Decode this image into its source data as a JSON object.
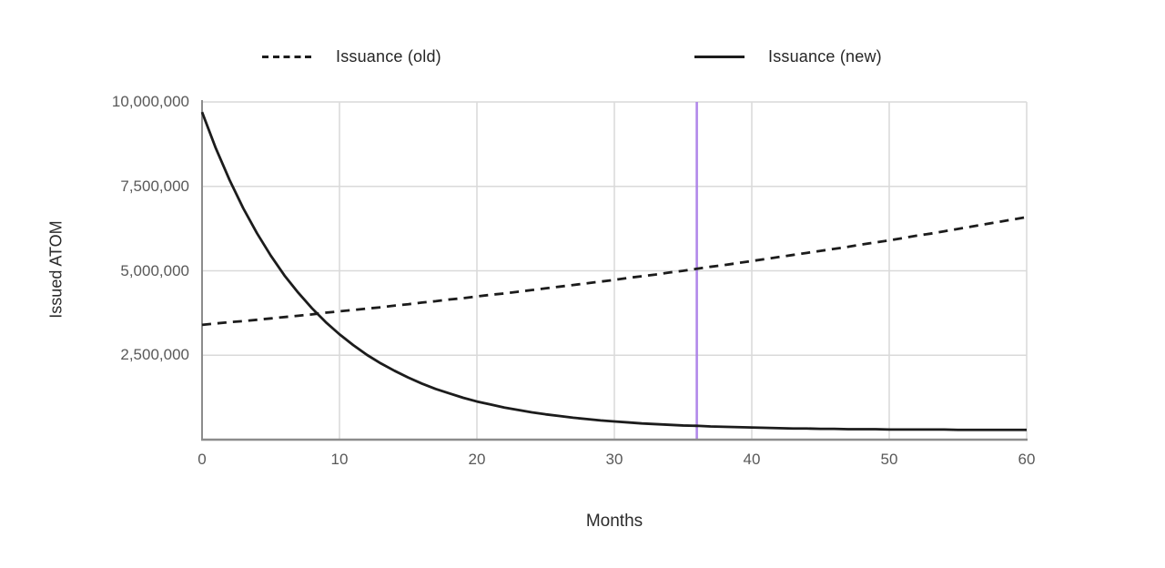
{
  "chart_data": {
    "type": "line",
    "title": "",
    "xlabel": "Months",
    "ylabel": "Issued ATOM",
    "xlim": [
      0,
      60
    ],
    "ylim": [
      0,
      10000000
    ],
    "grid": true,
    "legend_position": "top",
    "x_ticks": [
      {
        "value": 0,
        "label": "0"
      },
      {
        "value": 10,
        "label": "10"
      },
      {
        "value": 20,
        "label": "20"
      },
      {
        "value": 30,
        "label": "30"
      },
      {
        "value": 40,
        "label": "40"
      },
      {
        "value": 50,
        "label": "50"
      },
      {
        "value": 60,
        "label": "60"
      }
    ],
    "y_ticks": [
      {
        "value": 2500000,
        "label": "2,500,000"
      },
      {
        "value": 5000000,
        "label": "5,000,000"
      },
      {
        "value": 7500000,
        "label": "7,500,000"
      },
      {
        "value": 10000000,
        "label": "10,000,000"
      }
    ],
    "marker_line": {
      "x": 36,
      "color": "#a97ce8"
    },
    "x": [
      0,
      1,
      2,
      3,
      4,
      5,
      6,
      7,
      8,
      9,
      10,
      11,
      12,
      13,
      14,
      15,
      16,
      17,
      18,
      19,
      20,
      21,
      22,
      23,
      24,
      25,
      26,
      27,
      28,
      29,
      30,
      31,
      32,
      33,
      34,
      35,
      36,
      37,
      38,
      39,
      40,
      41,
      42,
      43,
      44,
      45,
      46,
      47,
      48,
      49,
      50,
      51,
      52,
      53,
      54,
      55,
      56,
      57,
      58,
      59,
      60
    ],
    "series": [
      {
        "name": "Issuance (old)",
        "style": "dashed",
        "color": "#1c1c1c",
        "values": [
          3400000,
          3440000,
          3480000,
          3510000,
          3550000,
          3590000,
          3630000,
          3670000,
          3710000,
          3760000,
          3800000,
          3840000,
          3880000,
          3920000,
          3970000,
          4010000,
          4060000,
          4100000,
          4150000,
          4190000,
          4240000,
          4290000,
          4330000,
          4380000,
          4430000,
          4480000,
          4530000,
          4580000,
          4630000,
          4680000,
          4730000,
          4790000,
          4840000,
          4890000,
          4950000,
          5000000,
          5060000,
          5120000,
          5170000,
          5230000,
          5290000,
          5350000,
          5410000,
          5470000,
          5530000,
          5590000,
          5650000,
          5710000,
          5780000,
          5840000,
          5900000,
          5970000,
          6040000,
          6100000,
          6170000,
          6240000,
          6310000,
          6380000,
          6450000,
          6520000,
          6590000
        ]
      },
      {
        "name": "Issuance (new)",
        "style": "solid",
        "color": "#1c1c1c",
        "values": [
          9700000,
          8630000,
          7690000,
          6850000,
          6110000,
          5450000,
          4860000,
          4350000,
          3890000,
          3480000,
          3120000,
          2800000,
          2510000,
          2260000,
          2040000,
          1840000,
          1660000,
          1500000,
          1370000,
          1240000,
          1130000,
          1040000,
          950000,
          880000,
          810000,
          750000,
          700000,
          650000,
          610000,
          570000,
          540000,
          510000,
          480000,
          460000,
          440000,
          420000,
          410000,
          390000,
          380000,
          370000,
          360000,
          350000,
          340000,
          330000,
          330000,
          320000,
          320000,
          310000,
          310000,
          310000,
          300000,
          300000,
          300000,
          300000,
          300000,
          290000,
          290000,
          290000,
          290000,
          290000,
          290000
        ]
      }
    ]
  },
  "colors": {
    "line": "#1c1c1c",
    "grid": "#d9d9d9",
    "axis": "#8c8c8c",
    "tick_text": "#595959",
    "label_text": "#2b2b2b",
    "marker": "#a97ce8",
    "background": "#ffffff"
  }
}
